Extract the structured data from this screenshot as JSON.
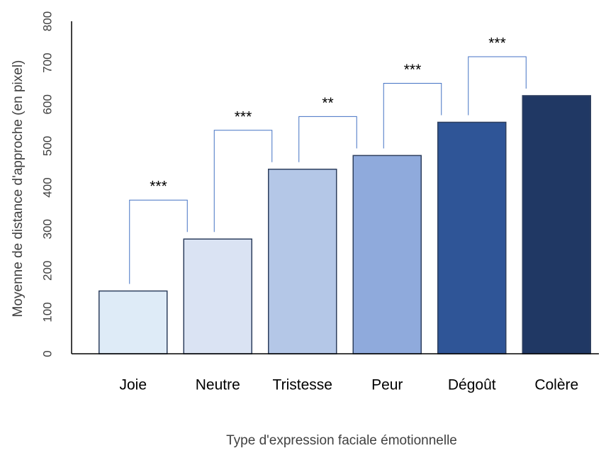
{
  "chart_data": {
    "type": "bar",
    "xlabel": "Type d'expression faciale émotionnelle",
    "ylabel": "Moyenne de distance d'approche (en pixel)",
    "categories": [
      "Joie",
      "Neutre",
      "Tristesse",
      "Peur",
      "Dégoût",
      "Colère"
    ],
    "values": [
      151,
      276,
      444,
      477,
      557,
      621
    ],
    "colors": [
      "#deebf7",
      "#dae3f3",
      "#b4c7e7",
      "#8faadc",
      "#2f5597",
      "#203864"
    ],
    "ylim": [
      0,
      800
    ],
    "yticks": [
      0,
      100,
      200,
      300,
      400,
      500,
      600,
      700,
      800
    ],
    "annotations": [
      "***",
      "***",
      "**",
      "***",
      "***"
    ]
  }
}
